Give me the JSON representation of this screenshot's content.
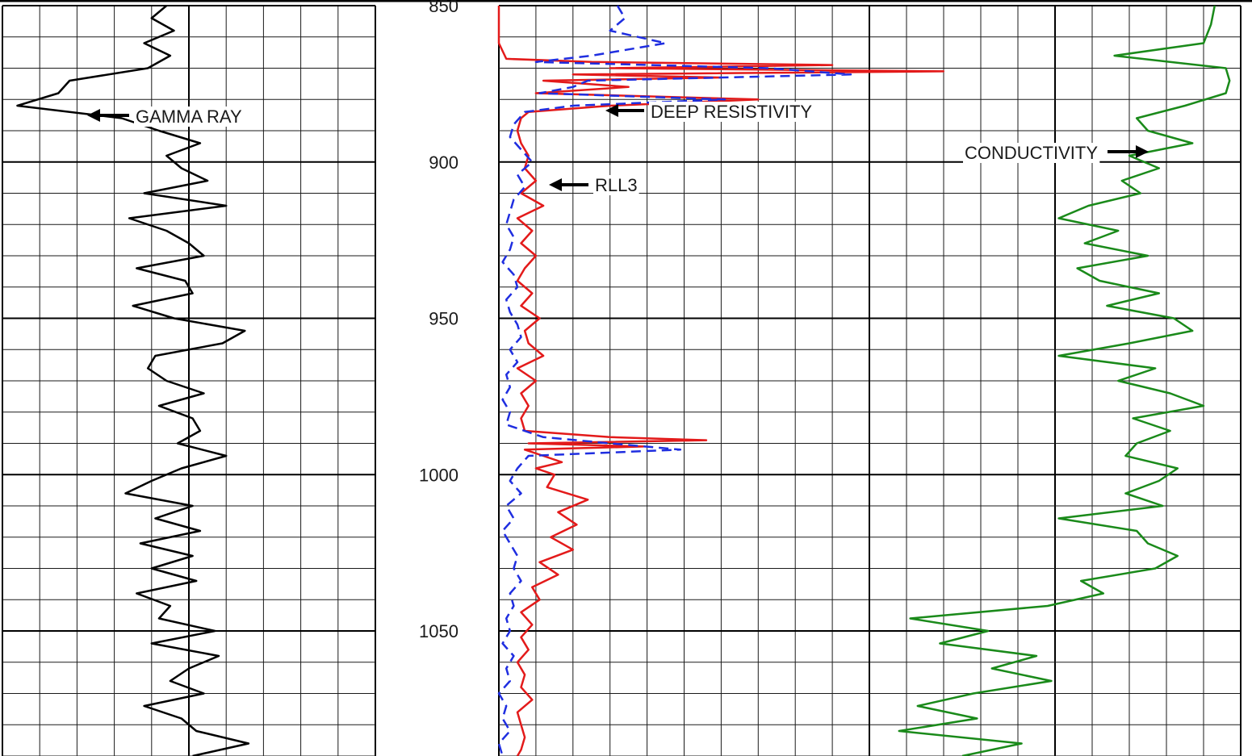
{
  "chart_data": {
    "type": "line",
    "title": "",
    "depth_axis": {
      "range": [
        850,
        1090
      ],
      "major_step": 50,
      "minor_step": 10,
      "tick_labels": [
        "850",
        "900",
        "950",
        "1000",
        "1050"
      ]
    },
    "tracks": [
      {
        "name": "track-1",
        "scale": "linear",
        "minor_divisions": 10,
        "major_every": 5
      },
      {
        "name": "track-2",
        "scale": "linear",
        "minor_divisions": 10,
        "major_every": 10
      },
      {
        "name": "track-3",
        "scale": "linear",
        "minor_divisions": 10,
        "major_every": 5
      }
    ],
    "series": [
      {
        "name": "GAMMA RAY",
        "track": 1,
        "color": "#000000",
        "style": "solid",
        "depth": [
          850,
          854,
          858,
          862,
          866,
          870,
          874,
          878,
          882,
          886,
          890,
          894,
          898,
          902,
          906,
          910,
          914,
          918,
          922,
          926,
          930,
          934,
          938,
          942,
          946,
          950,
          954,
          958,
          962,
          966,
          970,
          974,
          978,
          982,
          986,
          990,
          994,
          998,
          1002,
          1006,
          1010,
          1014,
          1018,
          1022,
          1026,
          1030,
          1034,
          1038,
          1042,
          1046,
          1050,
          1054,
          1058,
          1062,
          1066,
          1070,
          1074,
          1078,
          1082,
          1086,
          1090
        ],
        "value": [
          4.4,
          4.0,
          4.6,
          3.8,
          4.5,
          3.9,
          1.8,
          1.5,
          0.4,
          3.2,
          4.2,
          5.3,
          4.4,
          4.8,
          5.5,
          3.8,
          6.0,
          3.4,
          4.4,
          5.0,
          5.4,
          3.6,
          4.9,
          5.1,
          3.5,
          4.6,
          6.5,
          5.9,
          4.1,
          3.9,
          4.4,
          5.4,
          4.2,
          5.1,
          5.3,
          4.7,
          6.0,
          4.8,
          4.0,
          3.3,
          5.1,
          4.1,
          5.3,
          3.7,
          5.1,
          4.0,
          5.2,
          3.6,
          4.5,
          4.2,
          5.7,
          4.0,
          5.8,
          5.0,
          4.5,
          5.4,
          3.8,
          4.8,
          5.2,
          6.6,
          5.1
        ]
      },
      {
        "name": "DEEP RESISTIVITY",
        "track": 2,
        "color": "#e31a1a",
        "style": "solid",
        "depth": [
          850,
          862,
          867,
          868,
          869,
          870,
          871,
          872,
          873,
          874,
          876,
          878,
          880,
          882,
          884,
          886,
          888,
          890,
          894,
          898,
          902,
          906,
          910,
          914,
          918,
          922,
          926,
          930,
          934,
          938,
          942,
          946,
          950,
          954,
          958,
          962,
          966,
          970,
          974,
          978,
          982,
          986,
          988,
          989,
          990,
          991,
          992,
          994,
          996,
          998,
          1000,
          1004,
          1008,
          1012,
          1016,
          1020,
          1024,
          1028,
          1032,
          1036,
          1040,
          1044,
          1048,
          1052,
          1056,
          1060,
          1064,
          1068,
          1072,
          1076,
          1080,
          1084,
          1088,
          1090
        ],
        "value": [
          0.0,
          0.0,
          0.2,
          2.5,
          9.0,
          3.0,
          12.0,
          2.0,
          6.0,
          1.2,
          3.5,
          1.0,
          7.0,
          3.0,
          0.8,
          0.6,
          0.55,
          0.5,
          0.6,
          0.8,
          0.7,
          1.0,
          0.6,
          1.2,
          0.5,
          0.9,
          0.6,
          1.0,
          0.7,
          0.5,
          0.9,
          0.6,
          1.1,
          0.7,
          0.8,
          1.2,
          0.5,
          1.0,
          0.6,
          0.8,
          0.6,
          0.7,
          3.0,
          5.6,
          0.8,
          3.9,
          0.7,
          1.2,
          1.7,
          1.0,
          1.5,
          1.3,
          2.4,
          1.6,
          2.1,
          1.4,
          2.0,
          1.1,
          1.6,
          0.9,
          1.1,
          0.6,
          0.9,
          0.6,
          0.8,
          0.5,
          0.7,
          0.6,
          0.9,
          0.5,
          0.6,
          0.7,
          0.6,
          0.5
        ]
      },
      {
        "name": "RLL3",
        "track": 2,
        "color": "#1f2ee0",
        "style": "dashed",
        "depth": [
          850,
          854,
          858,
          862,
          866,
          868,
          870,
          872,
          874,
          876,
          878,
          880,
          882,
          884,
          888,
          892,
          896,
          900,
          904,
          908,
          912,
          916,
          920,
          924,
          928,
          932,
          936,
          940,
          944,
          948,
          952,
          956,
          960,
          964,
          968,
          972,
          976,
          980,
          984,
          988,
          990,
          992,
          994,
          998,
          1002,
          1006,
          1010,
          1014,
          1018,
          1022,
          1026,
          1030,
          1034,
          1038,
          1042,
          1046,
          1050,
          1054,
          1058,
          1062,
          1066,
          1070,
          1074,
          1078,
          1082,
          1086,
          1090
        ],
        "value": [
          3.2,
          3.4,
          3.0,
          4.5,
          2.5,
          1.0,
          7.3,
          9.5,
          2.4,
          2.0,
          1.1,
          6.1,
          2.0,
          0.7,
          0.4,
          0.3,
          0.6,
          0.9,
          0.5,
          0.7,
          0.4,
          0.3,
          0.2,
          0.4,
          0.3,
          0.1,
          0.4,
          0.5,
          0.2,
          0.3,
          0.5,
          0.6,
          0.3,
          0.5,
          0.2,
          0.3,
          0.1,
          0.3,
          0.2,
          1.2,
          3.0,
          4.9,
          0.8,
          0.5,
          0.3,
          0.6,
          0.2,
          0.4,
          0.1,
          0.3,
          0.5,
          0.4,
          0.6,
          0.3,
          0.4,
          0.2,
          0.3,
          0.1,
          0.4,
          0.2,
          0.3,
          0.0,
          0.2,
          0.1,
          0.3,
          0.0,
          0.1
        ]
      },
      {
        "name": "CONDUCTIVITY",
        "track": 3,
        "color": "#1a8a1a",
        "style": "solid",
        "depth": [
          850,
          856,
          862,
          866,
          870,
          874,
          878,
          882,
          886,
          890,
          894,
          898,
          902,
          906,
          910,
          914,
          918,
          922,
          926,
          930,
          934,
          938,
          942,
          946,
          950,
          954,
          958,
          962,
          966,
          970,
          974,
          978,
          982,
          986,
          990,
          994,
          998,
          1002,
          1006,
          1010,
          1014,
          1018,
          1022,
          1026,
          1030,
          1034,
          1038,
          1042,
          1046,
          1050,
          1054,
          1058,
          1062,
          1066,
          1070,
          1074,
          1078,
          1082,
          1086,
          1090
        ],
        "value": [
          9.3,
          9.2,
          9.0,
          6.6,
          9.6,
          9.7,
          9.6,
          8.5,
          7.2,
          7.5,
          8.7,
          7.0,
          7.8,
          6.8,
          7.3,
          5.9,
          5.1,
          6.7,
          5.8,
          7.5,
          5.6,
          6.2,
          7.8,
          6.4,
          8.2,
          8.7,
          7.0,
          5.1,
          7.7,
          6.7,
          8.1,
          9.0,
          7.1,
          8.1,
          7.2,
          6.9,
          8.3,
          7.8,
          6.9,
          7.9,
          5.1,
          7.2,
          7.5,
          8.3,
          7.7,
          5.7,
          6.3,
          4.8,
          1.1,
          3.2,
          1.9,
          4.5,
          3.3,
          4.9,
          2.8,
          1.3,
          2.9,
          0.8,
          4.1,
          2.5
        ]
      }
    ],
    "annotations": [
      {
        "text": "GAMMA RAY",
        "series": "GAMMA RAY"
      },
      {
        "text": "DEEP RESISTIVITY",
        "series": "DEEP RESISTIVITY"
      },
      {
        "text": "RLL3",
        "series": "RLL3"
      },
      {
        "text": "CONDUCTIVITY",
        "series": "CONDUCTIVITY"
      }
    ]
  }
}
